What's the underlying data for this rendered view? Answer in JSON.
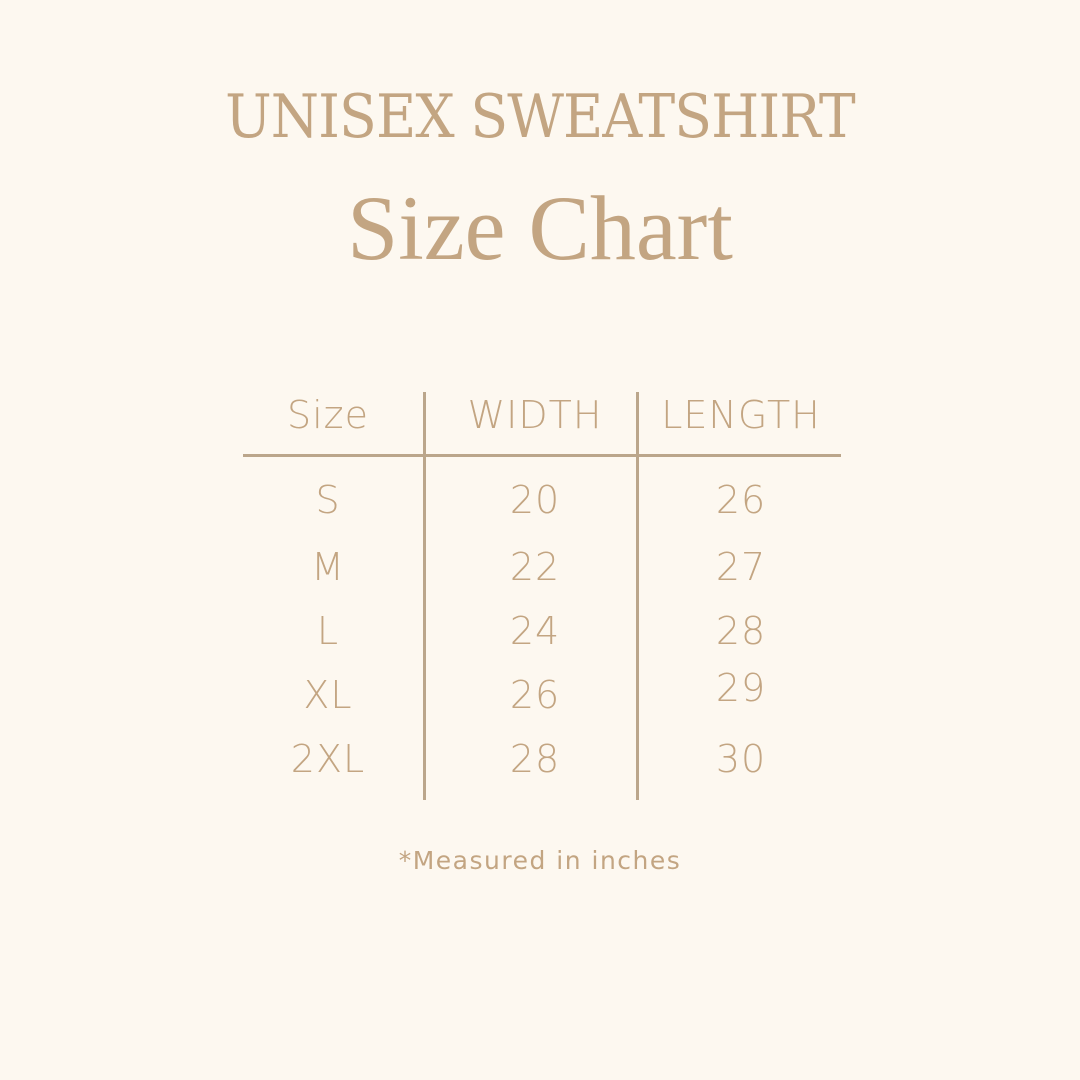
{
  "header": {
    "title_line1": "UNISEX SWEATSHIRT",
    "title_line2": "Size Chart"
  },
  "table": {
    "columns": [
      "Size",
      "WIDTH",
      "LENGTH"
    ],
    "rows": [
      [
        "S",
        "20",
        "26"
      ],
      [
        "M",
        "22",
        "27"
      ],
      [
        "L",
        "24",
        "28"
      ],
      [
        "XL",
        "26",
        "29"
      ],
      [
        "2XL",
        "28",
        "30"
      ]
    ]
  },
  "footnote": "*Measured in inches",
  "colors": {
    "background": "#fdf8f0",
    "text": "#c3a582",
    "rule": "#bba68b"
  }
}
